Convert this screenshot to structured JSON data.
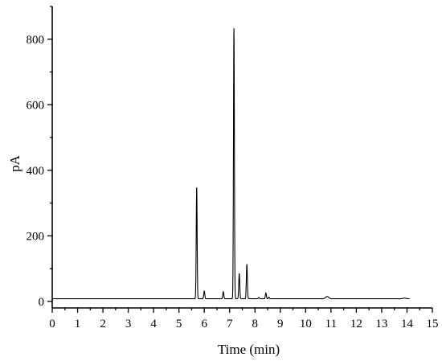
{
  "chart_data": {
    "type": "line",
    "title": "",
    "xlabel": "Time (min)",
    "ylabel": "pA",
    "xlim": [
      0,
      15
    ],
    "ylim": [
      -20,
      900
    ],
    "x_ticks": [
      0,
      1,
      2,
      3,
      4,
      5,
      6,
      7,
      8,
      9,
      10,
      11,
      12,
      13,
      14,
      15
    ],
    "y_ticks": [
      0,
      200,
      400,
      600,
      800
    ],
    "grid": false,
    "legend": "none",
    "baseline": 8,
    "x_end": 14.1,
    "peaks": [
      {
        "x": 5.7,
        "y": 347
      },
      {
        "x": 6.0,
        "y": 32
      },
      {
        "x": 6.75,
        "y": 30
      },
      {
        "x": 7.17,
        "y": 833
      },
      {
        "x": 7.38,
        "y": 85
      },
      {
        "x": 7.68,
        "y": 113
      },
      {
        "x": 8.15,
        "y": 12
      },
      {
        "x": 8.43,
        "y": 26
      },
      {
        "x": 8.55,
        "y": 13
      },
      {
        "x": 10.85,
        "y": 15
      },
      {
        "x": 13.9,
        "y": 10
      }
    ],
    "series": [
      {
        "values": []
      }
    ]
  }
}
